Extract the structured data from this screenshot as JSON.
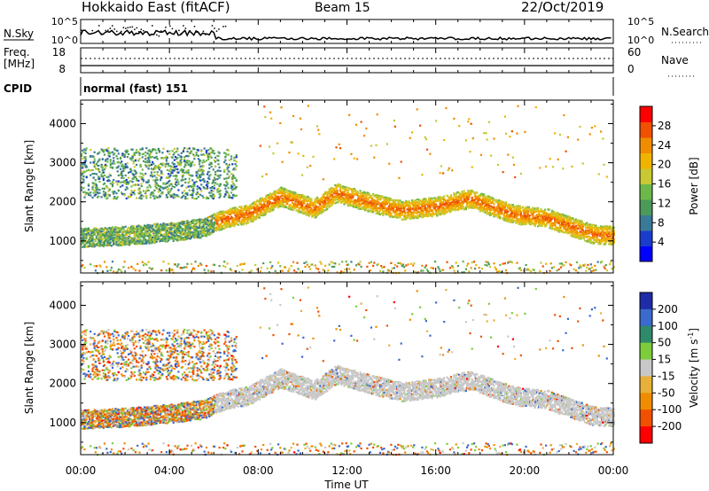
{
  "header": {
    "title": "Hokkaido East (fitACF)",
    "beam": "Beam 15",
    "date": "22/Oct/2019"
  },
  "strips": {
    "nsky_label": "N.Sky",
    "nsky_ticks": [
      "10^5",
      "10^0"
    ],
    "nsearch_label": "N.Search",
    "nsearch_ticks": [
      "10^5",
      "10^0"
    ],
    "freq_label": "Freq.",
    "freq_unit": "[MHz]",
    "freq_ticks": [
      "18",
      "8"
    ],
    "nave_label": "Nave",
    "nave_ticks": [
      "60",
      "0"
    ],
    "cpid_label": "CPID",
    "cpid_value": "normal (fast) 151"
  },
  "colors": {
    "power_scale": [
      "#0000ff",
      "#1a3ccc",
      "#3a7a99",
      "#4c9a5a",
      "#6cb84a",
      "#c8c832",
      "#f0b400",
      "#f08c00",
      "#f05000",
      "#ff0000"
    ],
    "velocity_scale": [
      "#1e2ca8",
      "#3a6acc",
      "#2e8a6a",
      "#7ccc3c",
      "#c8c8c8",
      "#e8b038",
      "#f08c00",
      "#f05000",
      "#ff0000"
    ]
  },
  "chart_data": [
    {
      "type": "heatmap",
      "panel": "power",
      "xlabel": "Time UT",
      "ylabel": "Slant Range [km]",
      "xlim": [
        0,
        24
      ],
      "ylim": [
        180,
        4600
      ],
      "x_ticks": [
        0,
        4,
        8,
        12,
        16,
        20,
        24
      ],
      "x_tick_labels": [
        "00:00",
        "04:00",
        "08:00",
        "12:00",
        "16:00",
        "20:00",
        "00:00"
      ],
      "y_ticks": [
        1000,
        2000,
        3000,
        4000
      ],
      "colorbar": {
        "label": "Power [dB]",
        "range": [
          0,
          32
        ],
        "ticks": [
          4,
          8,
          12,
          16,
          20,
          24,
          28
        ]
      },
      "features": [
        {
          "name": "main_band_centre_km",
          "x": [
            0,
            2,
            4,
            5.5,
            6.5,
            7.5,
            9,
            10.5,
            11.5,
            13,
            14.5,
            16,
            17.5,
            18.5,
            19.5,
            21,
            22,
            23,
            24
          ],
          "y": [
            1100,
            1150,
            1250,
            1350,
            1600,
            1700,
            2150,
            1850,
            2250,
            2000,
            1800,
            1900,
            2100,
            1900,
            1700,
            1600,
            1400,
            1200,
            1150
          ],
          "value_db": 24
        },
        {
          "name": "early_scatter_km",
          "x": [
            0,
            1,
            2,
            3,
            4,
            5,
            6
          ],
          "y": [
            2400,
            2600,
            2800,
            2700,
            2700,
            2800,
            2900
          ],
          "value_db": 12
        }
      ]
    },
    {
      "type": "heatmap",
      "panel": "velocity",
      "xlabel": "Time UT",
      "ylabel": "Slant Range [km]",
      "xlim": [
        0,
        24
      ],
      "ylim": [
        180,
        4600
      ],
      "x_ticks": [
        0,
        4,
        8,
        12,
        16,
        20,
        24
      ],
      "x_tick_labels": [
        "00:00",
        "04:00",
        "08:00",
        "12:00",
        "16:00",
        "20:00",
        "00:00"
      ],
      "y_ticks": [
        1000,
        2000,
        3000,
        4000
      ],
      "colorbar": {
        "label": "Velocity [m s",
        "label_sup": "-1",
        "label_tail": "]",
        "range": [
          -250,
          250
        ],
        "ticks": [
          200,
          100,
          50,
          15,
          -15,
          -50,
          -100,
          -200
        ]
      },
      "features": [
        {
          "name": "main_band_ground_scatter",
          "value_ms": 0
        }
      ]
    }
  ]
}
